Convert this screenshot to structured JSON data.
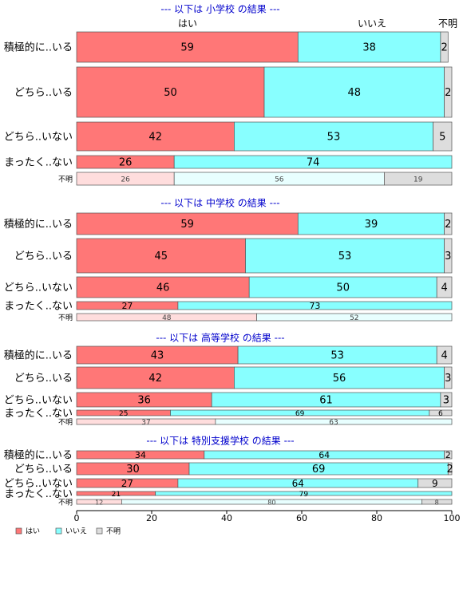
{
  "chart_data": {
    "type": "bar",
    "orientation": "horizontal",
    "stacked": true,
    "xlim": [
      0,
      100
    ],
    "x_ticks": [
      "0",
      "20",
      "40",
      "60",
      "80",
      "100"
    ],
    "grid": false,
    "legend_position": "bottom-left",
    "series": [
      {
        "name": "はい",
        "color": "#FF7777"
      },
      {
        "name": "いいえ",
        "color": "#88FFFF"
      },
      {
        "name": "不明",
        "color": "#DDDDDD"
      }
    ],
    "top_series_labels": [
      "はい",
      "いいえ",
      "不明"
    ],
    "panels": [
      {
        "title": "--- 以下は 小学校 の結果 ---",
        "categories": [
          "積極的に..いる",
          "どちら..いる",
          "どちら..いない",
          "まったく..ない",
          "不明"
        ],
        "values": [
          [
            59,
            38,
            2
          ],
          [
            50,
            48,
            2
          ],
          [
            42,
            53,
            5
          ],
          [
            26,
            74,
            0
          ],
          [
            26,
            56,
            19
          ]
        ],
        "labels": [
          [
            "59",
            "38",
            "2"
          ],
          [
            "50",
            "48",
            "2"
          ],
          [
            "42",
            "53",
            "5"
          ],
          [
            "26",
            "74",
            ""
          ],
          [
            "26",
            "56",
            "19"
          ]
        ]
      },
      {
        "title": "--- 以下は 中学校 の結果 ---",
        "categories": [
          "積極的に..いる",
          "どちら..いる",
          "どちら..いない",
          "まったく..ない",
          "不明"
        ],
        "values": [
          [
            59,
            39,
            2
          ],
          [
            45,
            53,
            3
          ],
          [
            46,
            50,
            4
          ],
          [
            27,
            73,
            0
          ],
          [
            48,
            52,
            0
          ]
        ],
        "labels": [
          [
            "59",
            "39",
            "2"
          ],
          [
            "45",
            "53",
            "3"
          ],
          [
            "46",
            "50",
            "4"
          ],
          [
            "27",
            "73",
            ""
          ],
          [
            "48",
            "52",
            ""
          ]
        ]
      },
      {
        "title": "--- 以下は 高等学校 の結果 ---",
        "categories": [
          "積極的に..いる",
          "どちら..いる",
          "どちら..いない",
          "まったく..ない",
          "不明"
        ],
        "values": [
          [
            43,
            53,
            4
          ],
          [
            42,
            56,
            3
          ],
          [
            36,
            61,
            3
          ],
          [
            25,
            69,
            6
          ],
          [
            37,
            63,
            0
          ]
        ],
        "labels": [
          [
            "43",
            "53",
            "4"
          ],
          [
            "42",
            "56",
            "3"
          ],
          [
            "36",
            "61",
            "3"
          ],
          [
            "25",
            "69",
            "6"
          ],
          [
            "37",
            "63",
            ""
          ]
        ]
      },
      {
        "title": "--- 以下は 特別支援学校 の結果 ---",
        "categories": [
          "積極的に..いる",
          "どちら..いる",
          "どちら..いない",
          "まったく..ない",
          "不明"
        ],
        "values": [
          [
            34,
            64,
            2
          ],
          [
            30,
            69,
            2
          ],
          [
            27,
            64,
            9
          ],
          [
            21,
            79,
            0
          ],
          [
            12,
            80,
            8
          ]
        ],
        "labels": [
          [
            "34",
            "64",
            "2"
          ],
          [
            "30",
            "69",
            "2"
          ],
          [
            "27",
            "64",
            "9"
          ],
          [
            "21",
            "79",
            ""
          ],
          [
            "12",
            "80",
            "8"
          ]
        ]
      }
    ]
  }
}
